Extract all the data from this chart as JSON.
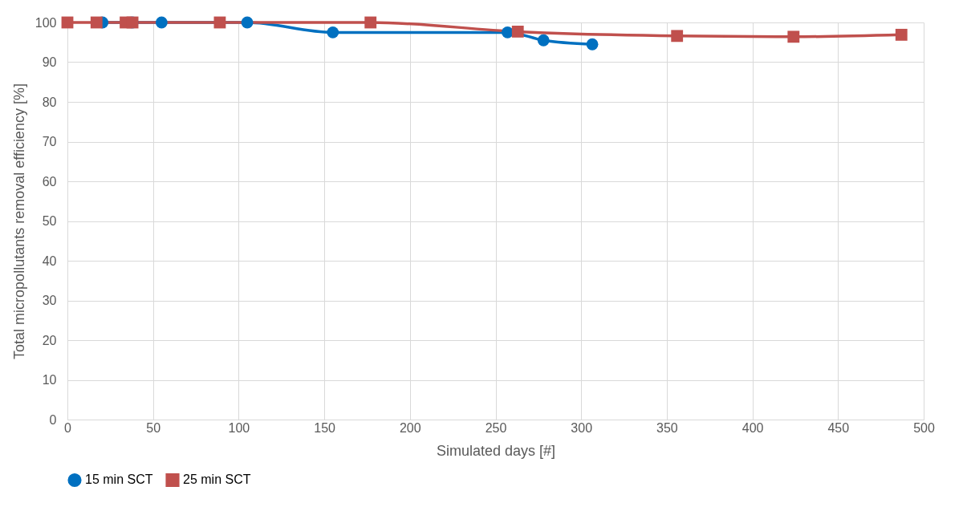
{
  "chart_data": {
    "type": "line",
    "xlabel": "Simulated days [#]",
    "ylabel": "Total micropollutants removal efficiency [%]",
    "xlim": [
      0,
      500
    ],
    "xticks": [
      0,
      50,
      100,
      150,
      200,
      250,
      300,
      350,
      400,
      450,
      500
    ],
    "ylim": [
      0,
      100
    ],
    "yticks": [
      0,
      10,
      20,
      30,
      40,
      50,
      60,
      70,
      80,
      90,
      100
    ],
    "grid": true,
    "legend": "bottom",
    "series": [
      {
        "name": "15 min SCT",
        "color": "#0070c0",
        "marker": "circle",
        "x": [
          20.5,
          38,
          55,
          105,
          155,
          257,
          278,
          306.5
        ],
        "values": [
          100,
          100,
          100,
          100,
          97.5,
          97.5,
          95.5,
          94.5
        ]
      },
      {
        "name": "25 min SCT",
        "color": "#c0504d",
        "marker": "square",
        "x": [
          0,
          17,
          34,
          38,
          89,
          177,
          263,
          356,
          424,
          487
        ],
        "values": [
          100,
          100,
          100,
          100,
          100,
          100,
          97.7,
          96.6,
          96.4,
          96.9
        ]
      }
    ]
  }
}
